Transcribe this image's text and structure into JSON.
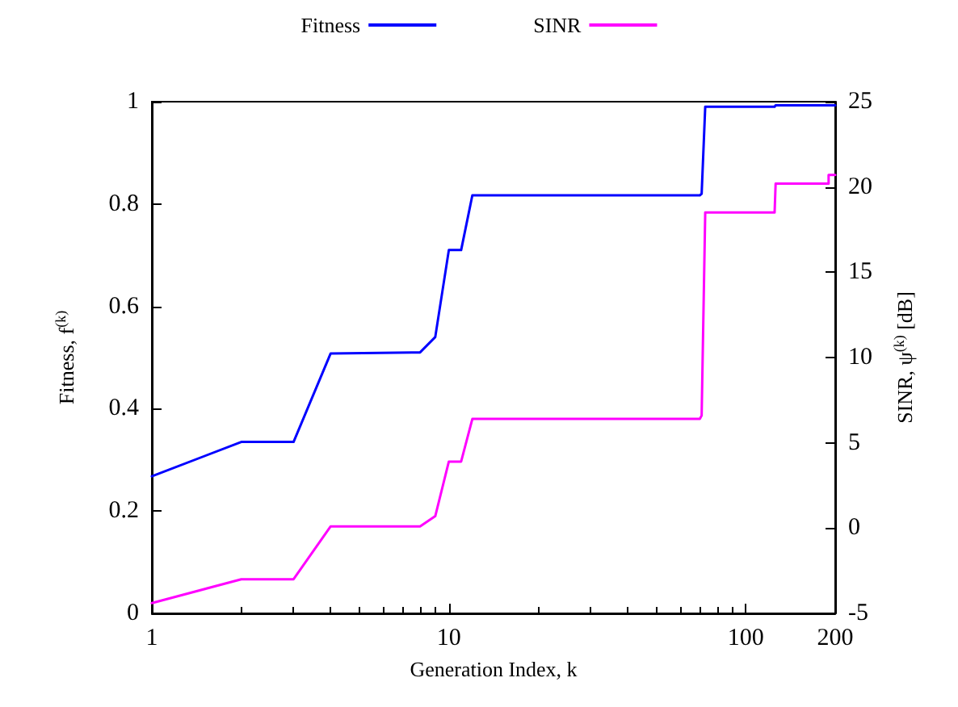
{
  "chart_data": {
    "type": "line",
    "xlabel": "Generation Index, k",
    "ylabel": "Fitness, f$^{(k)}$",
    "y2label": "SINR, ψ$^{(k)}$ [dB]",
    "log": "x",
    "grid": false,
    "legend": "top",
    "marker": "none",
    "line_style": "solid",
    "xlim": [
      1,
      200
    ],
    "xticks": [
      1,
      10,
      100,
      200
    ],
    "ylim": [
      0,
      1
    ],
    "yticks": [
      0,
      0.2,
      0.4,
      0.6,
      0.8,
      1
    ],
    "y2lim": [
      -5,
      25
    ],
    "y2ticks": [
      -5,
      0,
      5,
      10,
      15,
      20,
      25
    ],
    "series": [
      {
        "name": "Fitness",
        "color": "#0000ff",
        "x": [
          1,
          2,
          3,
          4,
          8,
          9,
          10,
          11,
          12,
          70,
          71,
          73,
          125,
          126,
          200
        ],
        "values": [
          0.268,
          0.335,
          0.335,
          0.508,
          0.51,
          0.54,
          0.71,
          0.71,
          0.817,
          0.817,
          0.82,
          0.99,
          0.99,
          0.993,
          0.993
        ]
      },
      {
        "name": "SINR",
        "color": "#ff00ff",
        "axis": "y2",
        "x": [
          1,
          2,
          3,
          4,
          8,
          9,
          10,
          11,
          12,
          70,
          71,
          73,
          125,
          126,
          190,
          190,
          200
        ],
        "values": [
          -4.4,
          -3.0,
          -3.0,
          0.1,
          0.1,
          0.7,
          3.9,
          3.9,
          6.4,
          6.4,
          6.6,
          18.5,
          18.5,
          20.2,
          20.2,
          20.7,
          20.7
        ]
      }
    ]
  }
}
